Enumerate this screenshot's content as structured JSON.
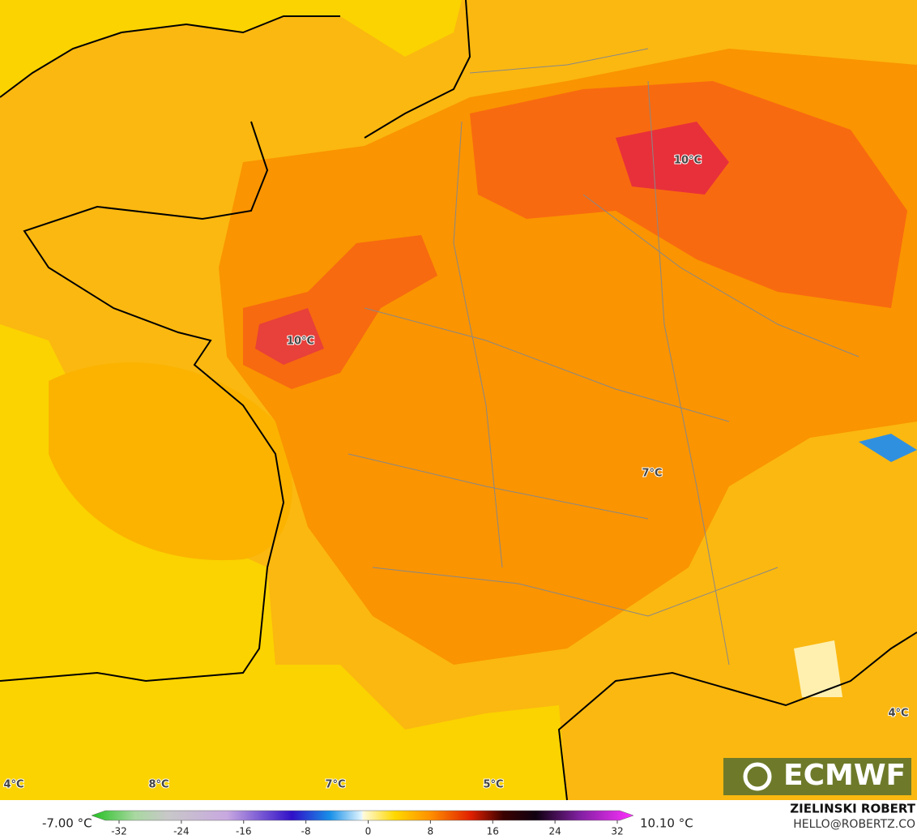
{
  "map": {
    "labels": [
      "10°C",
      "10°C",
      "7°C",
      "4°C",
      "4°C",
      "8°C",
      "7°C",
      "5°C"
    ]
  },
  "colorbar": {
    "min_label": "-7.00 °C",
    "max_label": "10.10 °C",
    "lim": [
      -32,
      32
    ],
    "ticks": [
      -32,
      -24,
      -16,
      -8,
      0,
      8,
      16,
      24,
      32
    ]
  },
  "logo": "ECMWF",
  "credit": {
    "name": "ZIELINSKI ROBERT",
    "email": "HELLO@ROBERTZ.CO"
  }
}
